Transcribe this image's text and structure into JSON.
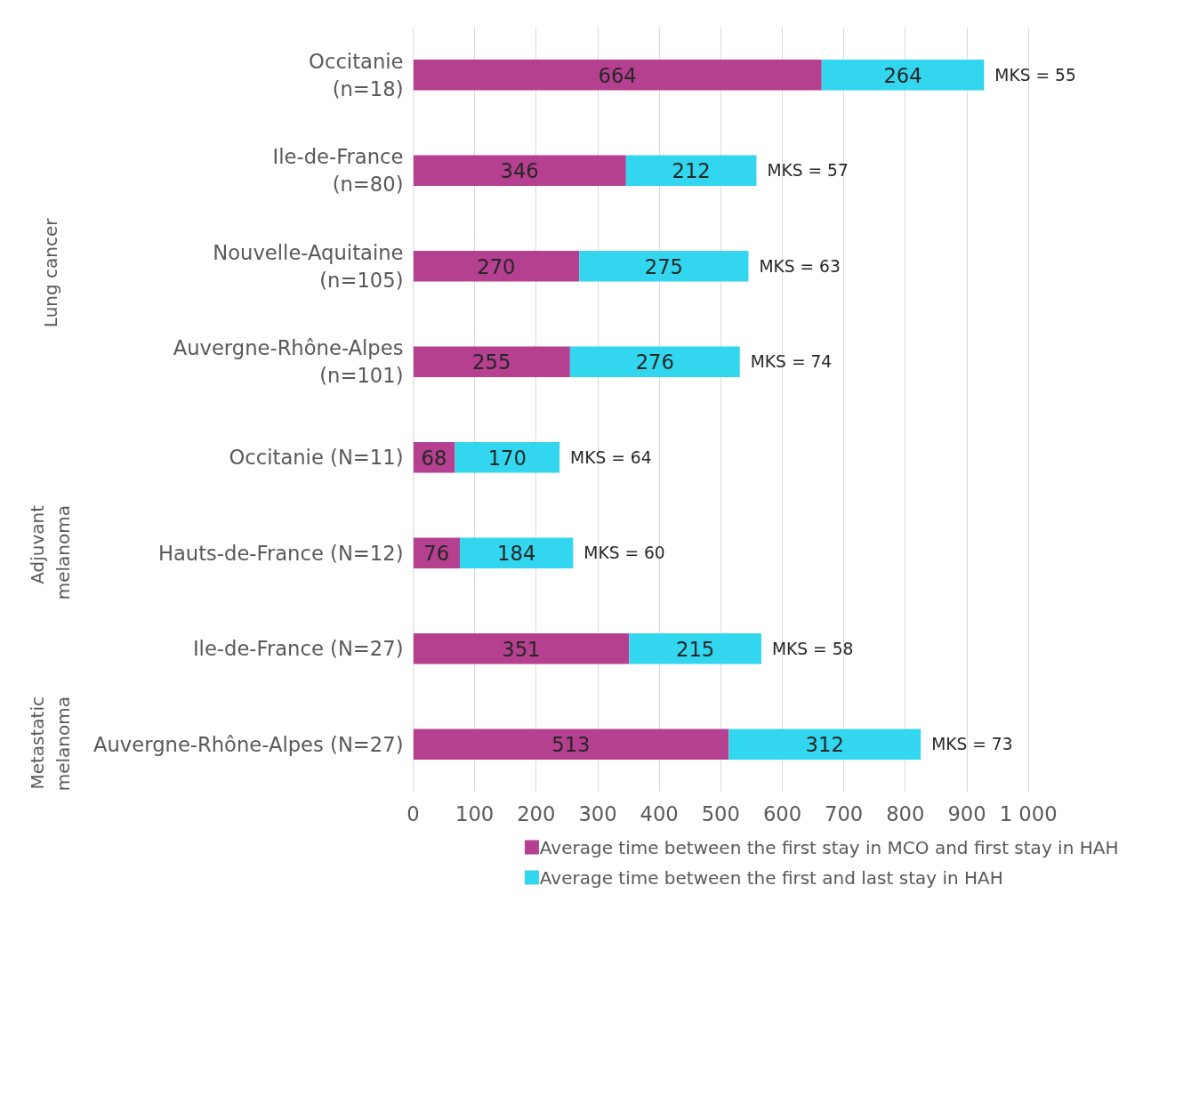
{
  "chart_data": {
    "type": "bar",
    "orientation": "horizontal",
    "stacked": true,
    "categories": [
      "Occitanie\n(n=18)",
      "Ile-de-France\n(n=80)",
      "Nouvelle-Aquitaine\n(n=105)",
      "Auvergne-Rhône-Alpes\n(n=101)",
      "Occitanie (N=11)",
      "Hauts-de-France (N=12)",
      "Ile-de-France (N=27)",
      "Auvergne-Rhône-Alpes (N=27)"
    ],
    "series": [
      {
        "name": "Average time between the first stay in MCO and first stay in HAH",
        "color": "#b5408f",
        "values": [
          664,
          346,
          270,
          255,
          68,
          76,
          351,
          513
        ]
      },
      {
        "name": "Average time between the first and last stay in HAH",
        "color": "#33d6ef",
        "values": [
          264,
          212,
          275,
          276,
          170,
          184,
          215,
          312
        ]
      }
    ],
    "xlim": [
      0,
      1000
    ],
    "xticks": [
      0,
      100,
      200,
      300,
      400,
      500,
      600,
      700,
      800,
      900,
      {
        "value": 1000,
        "label": "1 000"
      }
    ],
    "grid": "x",
    "legend": "bottom",
    "data_labels": true,
    "annotations": [
      {
        "text": "MKS = 55",
        "x": 928,
        "y": "Occitanie\n(n=18)"
      },
      {
        "text": "MKS = 57",
        "x": 558,
        "y": "Ile-de-France\n(n=80)"
      },
      {
        "text": "MKS = 63",
        "x": 545,
        "y": "Nouvelle-Aquitaine\n(n=105)"
      },
      {
        "text": "MKS = 74",
        "x": 531,
        "y": "Auvergne-Rhône-Alpes\n(n=101)"
      },
      {
        "text": "MKS = 64",
        "x": 238,
        "y": "Occitanie (N=11)"
      },
      {
        "text": "MKS = 60",
        "x": 260,
        "y": "Hauts-de-France (N=12)"
      },
      {
        "text": "MKS = 58",
        "x": 566,
        "y": "Ile-de-France (N=27)"
      },
      {
        "text": "MKS = 73",
        "x": 825,
        "y": "Auvergne-Rhône-Alpes (N=27)"
      },
      "Lung cancer",
      "Adjuvant\nmelanoma",
      "Metastatic\nmelanoma"
    ]
  }
}
